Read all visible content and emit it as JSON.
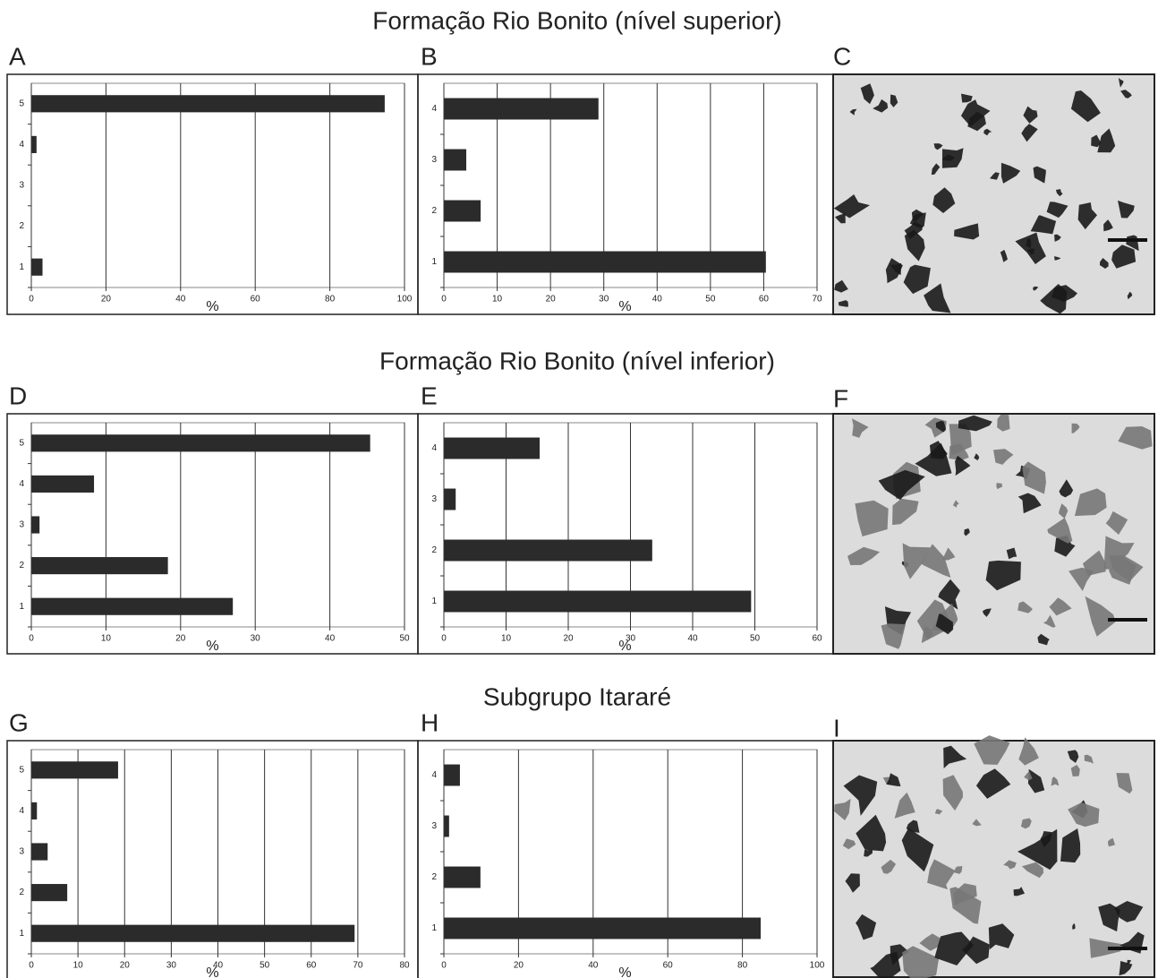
{
  "sections": [
    "Formação Rio Bonito (nível superior)",
    "Formação Rio Bonito (nível inferior)",
    "Subgrupo Itararé"
  ],
  "photos": [
    "C",
    "F",
    "I"
  ],
  "chart_data": [
    {
      "type": "bar",
      "panel": "A",
      "categories": [
        "1",
        "2",
        "3",
        "4",
        "5"
      ],
      "values": [
        3,
        0,
        0,
        1.4,
        94.7
      ],
      "color": "#2b2b2b",
      "xlim": [
        0,
        100
      ],
      "xticks": [
        0,
        20,
        40,
        60,
        80,
        100
      ],
      "xlabel": "%",
      "grid": true
    },
    {
      "type": "bar",
      "panel": "B",
      "categories": [
        "1",
        "2",
        "3",
        "4"
      ],
      "values": [
        60.4,
        6.9,
        4.2,
        29
      ],
      "color": "#2b2b2b",
      "xlim": [
        0,
        70
      ],
      "xticks": [
        0,
        10,
        20,
        30,
        40,
        50,
        60,
        70
      ],
      "xlabel": "%",
      "grid": true
    },
    {
      "type": "bar",
      "panel": "D",
      "categories": [
        "1",
        "2",
        "3",
        "4",
        "5"
      ],
      "values": [
        27,
        18.3,
        1.1,
        8.4,
        45.4
      ],
      "color": "#2b2b2b",
      "xlim": [
        0,
        50
      ],
      "xticks": [
        0,
        10,
        20,
        30,
        40,
        50
      ],
      "xlabel": "%",
      "grid": true
    },
    {
      "type": "bar",
      "panel": "E",
      "categories": [
        "1",
        "2",
        "3",
        "4"
      ],
      "values": [
        49.4,
        33.5,
        1.9,
        15.4
      ],
      "color": "#2b2b2b",
      "xlim": [
        0,
        60
      ],
      "xticks": [
        0,
        10,
        20,
        30,
        40,
        50,
        60
      ],
      "xlabel": "%",
      "grid": true
    },
    {
      "type": "bar",
      "panel": "G",
      "categories": [
        "1",
        "2",
        "3",
        "4",
        "5"
      ],
      "values": [
        69.3,
        7.7,
        3.5,
        1.2,
        18.6
      ],
      "color": "#2b2b2b",
      "xlim": [
        0,
        80
      ],
      "xticks": [
        0,
        10,
        20,
        30,
        40,
        50,
        60,
        70,
        80
      ],
      "xlabel": "%",
      "grid": true
    },
    {
      "type": "bar",
      "panel": "H",
      "categories": [
        "1",
        "2",
        "3",
        "4"
      ],
      "values": [
        84.9,
        9.8,
        1.4,
        4.3
      ],
      "color": "#2b2b2b",
      "xlim": [
        0,
        100
      ],
      "xticks": [
        0,
        20,
        40,
        60,
        80,
        100
      ],
      "xlabel": "%",
      "grid": true
    }
  ]
}
